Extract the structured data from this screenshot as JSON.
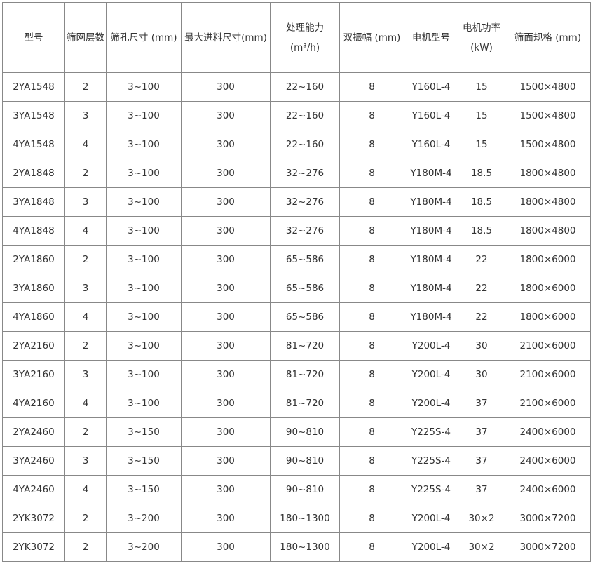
{
  "headers": [
    {
      "l1": "型号"
    },
    {
      "l1": "筛网层数"
    },
    {
      "l1": "筛孔尺寸 (mm)"
    },
    {
      "l1": "最大进料尺寸(mm)"
    },
    {
      "l1": "处理能力",
      "l2": "(m³/h)"
    },
    {
      "l1": "双振幅 (mm)"
    },
    {
      "l1": "电机型号"
    },
    {
      "l1": "电机功率",
      "l2": "(kW)"
    },
    {
      "l1": "筛面规格 (mm)"
    }
  ],
  "rows": [
    [
      "2YA1548",
      "2",
      "3~100",
      "300",
      "22~160",
      "8",
      "Y160L-4",
      "15",
      "1500×4800"
    ],
    [
      "3YA1548",
      "3",
      "3~100",
      "300",
      "22~160",
      "8",
      "Y160L-4",
      "15",
      "1500×4800"
    ],
    [
      "4YA1548",
      "4",
      "3~100",
      "300",
      "22~160",
      "8",
      "Y160L-4",
      "15",
      "1500×4800"
    ],
    [
      "2YA1848",
      "2",
      "3~100",
      "300",
      "32~276",
      "8",
      "Y180M-4",
      "18.5",
      "1800×4800"
    ],
    [
      "3YA1848",
      "3",
      "3~100",
      "300",
      "32~276",
      "8",
      "Y180M-4",
      "18.5",
      "1800×4800"
    ],
    [
      "4YA1848",
      "4",
      "3~100",
      "300",
      "32~276",
      "8",
      "Y180M-4",
      "18.5",
      "1800×4800"
    ],
    [
      "2YA1860",
      "2",
      "3~100",
      "300",
      "65~586",
      "8",
      "Y180M-4",
      "22",
      "1800×6000"
    ],
    [
      "3YA1860",
      "3",
      "3~100",
      "300",
      "65~586",
      "8",
      "Y180M-4",
      "22",
      "1800×6000"
    ],
    [
      "4YA1860",
      "4",
      "3~100",
      "300",
      "65~586",
      "8",
      "Y180M-4",
      "22",
      "1800×6000"
    ],
    [
      "2YA2160",
      "2",
      "3~100",
      "300",
      "81~720",
      "8",
      "Y200L-4",
      "30",
      "2100×6000"
    ],
    [
      "3YA2160",
      "3",
      "3~100",
      "300",
      "81~720",
      "8",
      "Y200L-4",
      "30",
      "2100×6000"
    ],
    [
      "4YA2160",
      "4",
      "3~100",
      "300",
      "81~720",
      "8",
      "Y200L-4",
      "37",
      "2100×6000"
    ],
    [
      "2YA2460",
      "2",
      "3~150",
      "300",
      "90~810",
      "8",
      "Y225S-4",
      "37",
      "2400×6000"
    ],
    [
      "3YA2460",
      "3",
      "3~150",
      "300",
      "90~810",
      "8",
      "Y225S-4",
      "37",
      "2400×6000"
    ],
    [
      "4YA2460",
      "4",
      "3~150",
      "300",
      "90~810",
      "8",
      "Y225S-4",
      "37",
      "2400×6000"
    ],
    [
      "2YK3072",
      "2",
      "3~200",
      "300",
      "180~1300",
      "8",
      "Y200L-4",
      "30×2",
      "3000×7200"
    ],
    [
      "2YK3072",
      "2",
      "3~200",
      "300",
      "180~1300",
      "8",
      "Y200L-4",
      "30×2",
      "3000×7200"
    ]
  ]
}
